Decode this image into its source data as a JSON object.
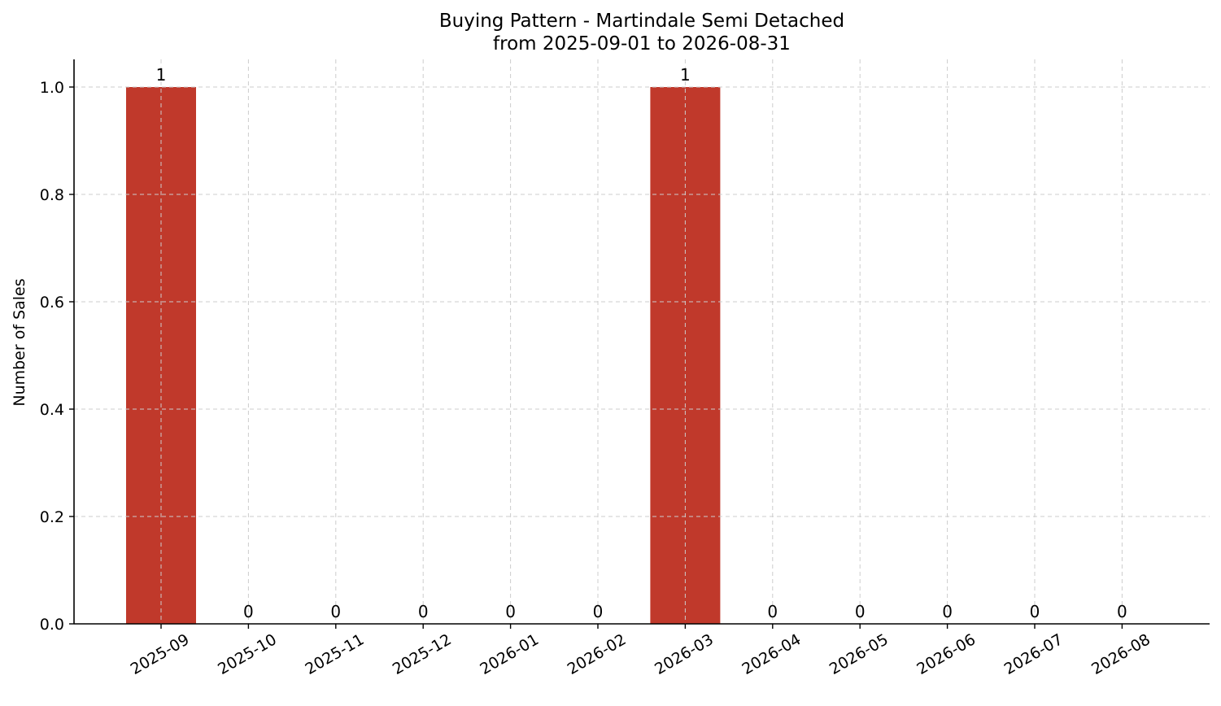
{
  "chart_data": {
    "type": "bar",
    "title": "Buying Pattern - Martindale Semi Detached",
    "subtitle": "from 2025-09-01 to 2026-08-31",
    "xlabel": "",
    "ylabel": "Number of Sales",
    "categories": [
      "2025-09",
      "2025-10",
      "2025-11",
      "2025-12",
      "2026-01",
      "2026-02",
      "2026-03",
      "2026-04",
      "2026-05",
      "2026-06",
      "2026-07",
      "2026-08"
    ],
    "values": [
      1,
      0,
      0,
      0,
      0,
      0,
      1,
      0,
      0,
      0,
      0,
      0
    ],
    "data_labels": [
      "1",
      "0",
      "0",
      "0",
      "0",
      "0",
      "1",
      "0",
      "0",
      "0",
      "0",
      "0"
    ],
    "ylim": [
      0,
      1.05
    ],
    "yticks": [
      0.0,
      0.2,
      0.4,
      0.6,
      0.8,
      1.0
    ],
    "ytick_labels": [
      "0.0",
      "0.2",
      "0.4",
      "0.6",
      "0.8",
      "1.0"
    ],
    "grid": true,
    "bar_color": "#c0392b",
    "legend": "none"
  }
}
